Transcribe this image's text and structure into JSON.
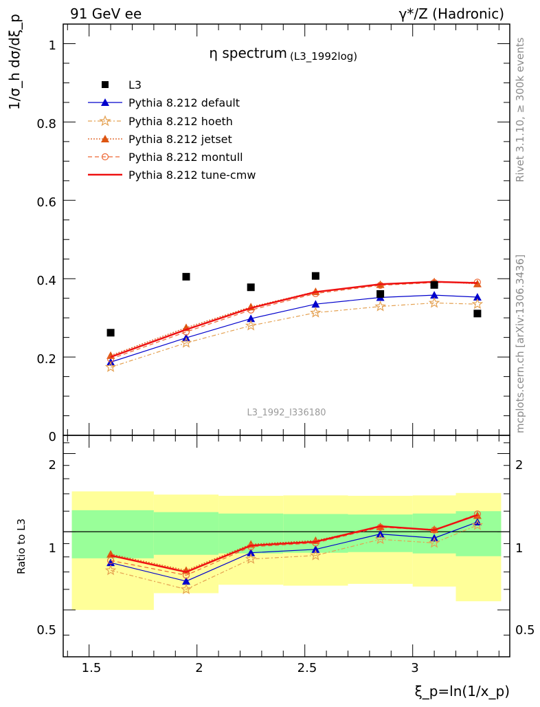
{
  "header": {
    "left": "91 GeV ee",
    "right": "γ*/Z (Hadronic)"
  },
  "side_labels": {
    "rivet": "Rivet 3.1.10, ≥ 300k events",
    "mcplots": "mcplots.cern.ch [arXiv:1306.3436]"
  },
  "watermark": "L3_1992_I336180",
  "chart_data": {
    "type": "line",
    "title_main": "η spectrum",
    "title_sub": "(L3_1992log)",
    "ylabel_main": "1/σ_h dσ/dξ_p",
    "ylabel_ratio": "Ratio to L3",
    "xlabel": "ξ_p=ln(1/x_p)",
    "xlim": [
      1.38,
      3.45
    ],
    "ylim_main": [
      0,
      1.05
    ],
    "ylim_ratio": [
      0.33,
      2.35
    ],
    "ratio_scale": "log",
    "x_ticks": [
      "1.5",
      "2",
      "2.5",
      "3"
    ],
    "y_ticks_main": [
      "0.2",
      "0.4",
      "0.6",
      "0.8",
      "1"
    ],
    "y_ticks_ratio": [
      "0.5",
      "1",
      "2"
    ],
    "y_main_zero_label": "0",
    "legend_position": "top-left",
    "x": [
      1.6,
      1.95,
      2.25,
      2.55,
      2.85,
      3.1,
      3.3
    ],
    "data": {
      "name": "L3",
      "color": "#000000",
      "values": [
        0.262,
        0.405,
        0.378,
        0.407,
        0.361,
        0.384,
        0.311
      ]
    },
    "series": [
      {
        "name": "Pythia 8.212 default",
        "color": "#0000cc",
        "values": [
          0.187,
          0.249,
          0.298,
          0.335,
          0.352,
          0.358,
          0.353
        ],
        "ratio": [
          0.76,
          0.645,
          0.83,
          0.855,
          0.98,
          0.945,
          1.09
        ]
      },
      {
        "name": "Pythia 8.212 hoeth",
        "color": "#e4a050",
        "values": [
          0.174,
          0.236,
          0.28,
          0.313,
          0.329,
          0.338,
          0.335
        ],
        "ratio": [
          0.71,
          0.6,
          0.785,
          0.81,
          0.935,
          0.905,
          1.06
        ]
      },
      {
        "name": "Pythia 8.212 jetset",
        "color": "#dd5511",
        "values": [
          0.204,
          0.275,
          0.328,
          0.367,
          0.385,
          0.392,
          0.387
        ],
        "ratio": [
          0.82,
          0.71,
          0.895,
          0.925,
          1.045,
          1.02,
          1.155
        ]
      },
      {
        "name": "Pythia 8.212 montull",
        "color": "#ee6633",
        "values": [
          0.195,
          0.264,
          0.32,
          0.362,
          0.383,
          0.39,
          0.391
        ],
        "ratio": [
          0.775,
          0.68,
          0.875,
          0.905,
          1.04,
          1.015,
          1.17
        ]
      },
      {
        "name": "Pythia 8.212 tune-cmw",
        "color": "#ee1111",
        "values": [
          0.2,
          0.27,
          0.325,
          0.366,
          0.386,
          0.392,
          0.389
        ],
        "ratio": [
          0.81,
          0.7,
          0.885,
          0.915,
          1.05,
          1.015,
          1.16
        ]
      }
    ],
    "bands": [
      {
        "x0": 1.42,
        "x1": 1.8,
        "yellow": [
          0.5,
          1.43
        ],
        "green": [
          0.79,
          1.21
        ]
      },
      {
        "x0": 1.8,
        "x1": 2.1,
        "yellow": [
          0.58,
          1.39
        ],
        "green": [
          0.815,
          1.19
        ]
      },
      {
        "x0": 2.1,
        "x1": 2.4,
        "yellow": [
          0.625,
          1.375
        ],
        "green": [
          0.825,
          1.175
        ]
      },
      {
        "x0": 2.4,
        "x1": 2.7,
        "yellow": [
          0.62,
          1.38
        ],
        "green": [
          0.83,
          1.17
        ]
      },
      {
        "x0": 2.7,
        "x1": 3.0,
        "yellow": [
          0.63,
          1.375
        ],
        "green": [
          0.835,
          1.165
        ]
      },
      {
        "x0": 3.0,
        "x1": 3.2,
        "yellow": [
          0.615,
          1.38
        ],
        "green": [
          0.825,
          1.175
        ]
      },
      {
        "x0": 3.2,
        "x1": 3.41,
        "yellow": [
          0.54,
          1.41
        ],
        "green": [
          0.805,
          1.2
        ]
      }
    ]
  }
}
